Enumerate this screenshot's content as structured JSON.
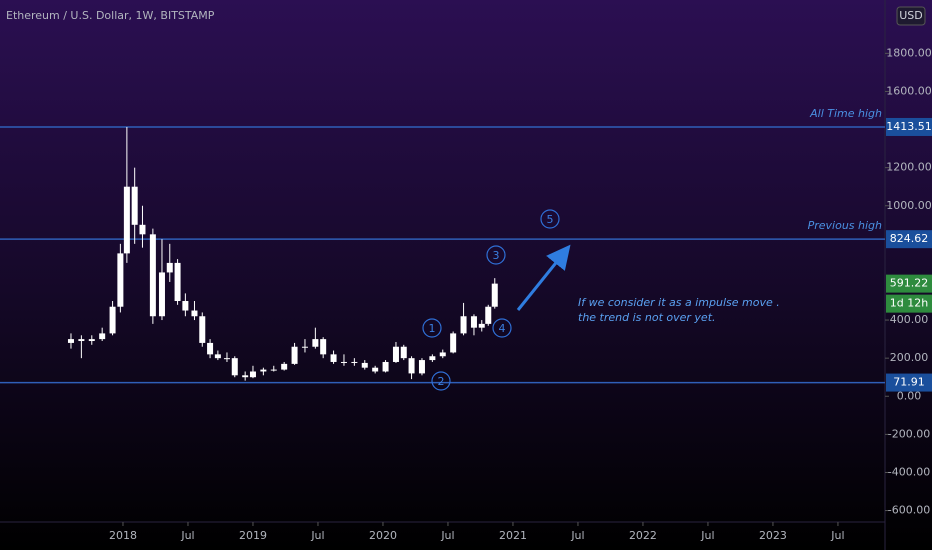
{
  "chart_data": {
    "type": "candlestick",
    "title": "Ethereum / U.S. Dollar, 1W, BITSTAMP",
    "currency": "USD",
    "x": [
      2017.6,
      2017.68,
      2017.76,
      2017.84,
      2017.92,
      2017.98,
      2018.03,
      2018.09,
      2018.15,
      2018.23,
      2018.3,
      2018.36,
      2018.42,
      2018.48,
      2018.55,
      2018.61,
      2018.67,
      2018.73,
      2018.8,
      2018.86,
      2018.94,
      2019.0,
      2019.08,
      2019.16,
      2019.24,
      2019.32,
      2019.4,
      2019.48,
      2019.54,
      2019.62,
      2019.7,
      2019.78,
      2019.86,
      2019.94,
      2020.02,
      2020.1,
      2020.16,
      2020.22,
      2020.3,
      2020.38,
      2020.46,
      2020.54,
      2020.62,
      2020.7,
      2020.76,
      2020.81,
      2020.86
    ],
    "open": [
      280,
      300,
      290,
      300,
      330,
      470,
      750,
      1100,
      900,
      850,
      420,
      650,
      700,
      500,
      450,
      420,
      280,
      220,
      200,
      200,
      110,
      100,
      130,
      140,
      140,
      170,
      260,
      260,
      300,
      220,
      180,
      180,
      175,
      150,
      130,
      180,
      260,
      200,
      120,
      190,
      210,
      230,
      330,
      420,
      360,
      380,
      470
    ],
    "high": [
      330,
      320,
      320,
      360,
      500,
      800,
      1413.51,
      1200,
      1000,
      880,
      824.62,
      800,
      720,
      540,
      500,
      440,
      300,
      240,
      230,
      210,
      130,
      160,
      150,
      160,
      180,
      280,
      300,
      360,
      310,
      240,
      220,
      200,
      190,
      160,
      190,
      285,
      270,
      210,
      200,
      220,
      245,
      340,
      490,
      430,
      400,
      480,
      620
    ],
    "low": [
      250,
      200,
      270,
      290,
      320,
      440,
      700,
      800,
      780,
      380,
      400,
      600,
      480,
      420,
      400,
      260,
      200,
      190,
      180,
      100,
      82,
      95,
      110,
      130,
      135,
      165,
      230,
      250,
      200,
      170,
      160,
      160,
      140,
      120,
      125,
      175,
      190,
      90,
      110,
      180,
      200,
      225,
      320,
      320,
      340,
      370,
      460
    ],
    "close": [
      300,
      290,
      300,
      330,
      470,
      750,
      1100,
      900,
      850,
      420,
      650,
      700,
      500,
      450,
      420,
      280,
      220,
      200,
      200,
      110,
      100,
      130,
      140,
      140,
      170,
      260,
      260,
      300,
      220,
      180,
      180,
      175,
      150,
      130,
      180,
      260,
      200,
      120,
      190,
      210,
      230,
      330,
      420,
      360,
      380,
      470,
      591.22
    ],
    "color": "#ffffff",
    "xlim": [
      2017.054,
      2023.862
    ],
    "xticks": [
      {
        "value": 2018,
        "label": "2018"
      },
      {
        "value": 2018.5,
        "label": "Jul"
      },
      {
        "value": 2019,
        "label": "2019"
      },
      {
        "value": 2019.5,
        "label": "Jul"
      },
      {
        "value": 2020,
        "label": "2020"
      },
      {
        "value": 2020.5,
        "label": "Jul"
      },
      {
        "value": 2021,
        "label": "2021"
      },
      {
        "value": 2021.5,
        "label": "Jul"
      },
      {
        "value": 2022,
        "label": "2022"
      },
      {
        "value": 2022.5,
        "label": "Jul"
      },
      {
        "value": 2023,
        "label": "2023"
      },
      {
        "value": 2023.5,
        "label": "Jul"
      }
    ],
    "ylim": [
      -660,
      2080
    ],
    "yticks": [
      {
        "value": -600,
        "label": "-600.00"
      },
      {
        "value": -400,
        "label": "-400.00"
      },
      {
        "value": -200,
        "label": "-200.00"
      },
      {
        "value": 0,
        "label": "0.00"
      },
      {
        "value": 200,
        "label": "200.00"
      },
      {
        "value": 400,
        "label": "400.00"
      },
      {
        "value": 1000,
        "label": "1000.00"
      },
      {
        "value": 1200,
        "label": "1200.00"
      },
      {
        "value": 1600,
        "label": "1600.00"
      },
      {
        "value": 1800,
        "label": "1800.00"
      }
    ],
    "hlines": [
      {
        "value": 1413.51,
        "label": "All Time high"
      },
      {
        "value": 824.62,
        "label": "Previous high"
      },
      {
        "value": 71.91
      }
    ],
    "hline_color": "#2f5fb8",
    "countdown": "1d 12h",
    "wave_labels": [
      "1",
      "2",
      "3",
      "4",
      "5"
    ],
    "note": [
      "If we consider it as a impulse move .",
      "the trend is not over yet."
    ]
  }
}
